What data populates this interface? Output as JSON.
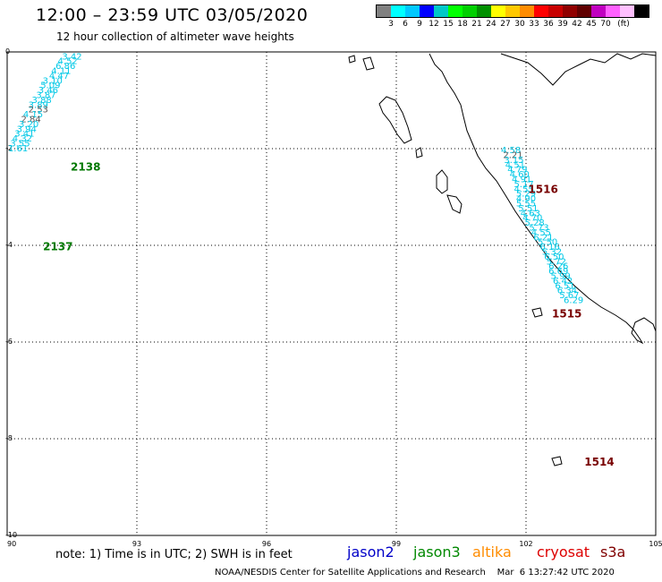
{
  "header": {
    "title": "12:00 – 23:59 UTC 03/05/2020",
    "subtitle": "12 hour collection of altimeter wave heights"
  },
  "legend": {
    "colors": [
      "#808080",
      "#00ffff",
      "#00c8ff",
      "#0000ff",
      "#00c8c8",
      "#00ff00",
      "#00d000",
      "#009000",
      "#ffff00",
      "#ffc800",
      "#ff8c00",
      "#ff0000",
      "#c80000",
      "#900000",
      "#600000",
      "#c000c0",
      "#ff60ff",
      "#ffc0ff",
      "#000000"
    ],
    "ticks": [
      "3",
      "6",
      "9",
      "12",
      "15",
      "18",
      "21",
      "24",
      "27",
      "30",
      "33",
      "36",
      "39",
      "42",
      "45",
      "70",
      "(ft)"
    ]
  },
  "map": {
    "lat_ticks": [
      "0",
      "-2",
      "-4",
      "-6",
      "-8",
      "-10"
    ],
    "lon_ticks": [
      "90",
      "93",
      "96",
      "99",
      "102",
      "105"
    ],
    "lon_range": [
      90,
      105
    ],
    "lat_range": [
      -10,
      0
    ],
    "track_colors": {
      "cyan": "#00c8e6",
      "gray": "#555555",
      "green": "#007800",
      "darkred": "#780000"
    },
    "track_labels": [
      {
        "text": "2138",
        "lon": 91.47,
        "lat": -2.38,
        "color": "green"
      },
      {
        "text": "2137",
        "lon": 90.83,
        "lat": -4.03,
        "color": "green"
      },
      {
        "text": "1516",
        "lon": 102.05,
        "lat": -2.84,
        "color": "darkred"
      },
      {
        "text": "1515",
        "lon": 102.6,
        "lat": -5.42,
        "color": "darkred"
      },
      {
        "text": "1514",
        "lon": 103.35,
        "lat": -8.48,
        "color": "darkred"
      }
    ],
    "observations": [
      {
        "v": "3.42",
        "lon": 91.5,
        "lat": -0.08,
        "c": "cyan"
      },
      {
        "v": "4.52",
        "lon": 91.4,
        "lat": -0.18,
        "c": "cyan"
      },
      {
        "v": "6.86",
        "lon": 91.35,
        "lat": -0.28,
        "c": "cyan"
      },
      {
        "v": "4.11",
        "lon": 91.25,
        "lat": -0.38,
        "c": "cyan"
      },
      {
        "v": "4.47",
        "lon": 91.2,
        "lat": -0.48,
        "c": "cyan"
      },
      {
        "v": "3.10",
        "lon": 91.05,
        "lat": -0.58,
        "c": "cyan"
      },
      {
        "v": "5.09",
        "lon": 91.0,
        "lat": -0.68,
        "c": "cyan"
      },
      {
        "v": "3.46",
        "lon": 90.95,
        "lat": -0.78,
        "c": "cyan"
      },
      {
        "v": "3.87",
        "lon": 90.9,
        "lat": -0.88,
        "c": "cyan"
      },
      {
        "v": "3.88",
        "lon": 90.8,
        "lat": -0.98,
        "c": "cyan"
      },
      {
        "v": "3.89",
        "lon": 90.72,
        "lat": -1.08,
        "c": "cyan"
      },
      {
        "v": "2.53",
        "lon": 90.72,
        "lat": -1.18,
        "c": "gray"
      },
      {
        "v": "4.15",
        "lon": 90.6,
        "lat": -1.28,
        "c": "cyan"
      },
      {
        "v": "2.84",
        "lon": 90.55,
        "lat": -1.38,
        "c": "gray"
      },
      {
        "v": "3.20",
        "lon": 90.5,
        "lat": -1.48,
        "c": "cyan"
      },
      {
        "v": "3.94",
        "lon": 90.45,
        "lat": -1.58,
        "c": "cyan"
      },
      {
        "v": "3.41",
        "lon": 90.4,
        "lat": -1.68,
        "c": "cyan"
      },
      {
        "v": "4.32",
        "lon": 90.35,
        "lat": -1.78,
        "c": "cyan"
      },
      {
        "v": "3.55",
        "lon": 90.3,
        "lat": -1.88,
        "c": "cyan"
      },
      {
        "v": "1.61",
        "lon": 90.25,
        "lat": -1.98,
        "c": "cyan"
      },
      {
        "v": "4.58",
        "lon": 101.65,
        "lat": -2.02,
        "c": "cyan"
      },
      {
        "v": "2.21",
        "lon": 101.7,
        "lat": -2.12,
        "c": "gray"
      },
      {
        "v": "3.15",
        "lon": 101.72,
        "lat": -2.22,
        "c": "cyan"
      },
      {
        "v": "4.51",
        "lon": 101.75,
        "lat": -2.32,
        "c": "cyan"
      },
      {
        "v": "4.79",
        "lon": 101.8,
        "lat": -2.42,
        "c": "cyan"
      },
      {
        "v": "4.60",
        "lon": 101.85,
        "lat": -2.52,
        "c": "cyan"
      },
      {
        "v": "4.91",
        "lon": 101.9,
        "lat": -2.62,
        "c": "cyan"
      },
      {
        "v": "5.17",
        "lon": 101.95,
        "lat": -2.72,
        "c": "cyan"
      },
      {
        "v": "4.55",
        "lon": 101.95,
        "lat": -2.82,
        "c": "cyan"
      },
      {
        "v": "5.29",
        "lon": 102.0,
        "lat": -2.92,
        "c": "cyan"
      },
      {
        "v": "4.90",
        "lon": 102.0,
        "lat": -3.02,
        "c": "cyan"
      },
      {
        "v": "5.55",
        "lon": 102.0,
        "lat": -3.12,
        "c": "cyan"
      },
      {
        "v": "5.51",
        "lon": 102.05,
        "lat": -3.22,
        "c": "cyan"
      },
      {
        "v": "4.63",
        "lon": 102.1,
        "lat": -3.32,
        "c": "cyan"
      },
      {
        "v": "4.70",
        "lon": 102.15,
        "lat": -3.42,
        "c": "cyan"
      },
      {
        "v": "5.28",
        "lon": 102.2,
        "lat": -3.52,
        "c": "cyan"
      },
      {
        "v": "5.73",
        "lon": 102.3,
        "lat": -3.62,
        "c": "cyan"
      },
      {
        "v": "4.55",
        "lon": 102.35,
        "lat": -3.72,
        "c": "cyan"
      },
      {
        "v": "6.21",
        "lon": 102.4,
        "lat": -3.82,
        "c": "cyan"
      },
      {
        "v": "5.50",
        "lon": 102.5,
        "lat": -3.92,
        "c": "cyan"
      },
      {
        "v": "6.16",
        "lon": 102.55,
        "lat": -4.02,
        "c": "cyan"
      },
      {
        "v": "5.32",
        "lon": 102.6,
        "lat": -4.12,
        "c": "cyan"
      },
      {
        "v": "6.50",
        "lon": 102.65,
        "lat": -4.22,
        "c": "cyan"
      },
      {
        "v": "5.72",
        "lon": 102.7,
        "lat": -4.32,
        "c": "cyan"
      },
      {
        "v": "6.26",
        "lon": 102.75,
        "lat": -4.42,
        "c": "cyan"
      },
      {
        "v": "6.69",
        "lon": 102.75,
        "lat": -4.52,
        "c": "cyan"
      },
      {
        "v": "5.99",
        "lon": 102.8,
        "lat": -4.62,
        "c": "cyan"
      },
      {
        "v": "6.42",
        "lon": 102.85,
        "lat": -4.72,
        "c": "cyan"
      },
      {
        "v": "6.51",
        "lon": 102.9,
        "lat": -4.82,
        "c": "cyan"
      },
      {
        "v": "6.34",
        "lon": 102.95,
        "lat": -4.92,
        "c": "cyan"
      },
      {
        "v": "5.67",
        "lon": 103.0,
        "lat": -5.02,
        "c": "cyan"
      },
      {
        "v": "6.29",
        "lon": 103.1,
        "lat": -5.12,
        "c": "cyan"
      }
    ]
  },
  "note": "note:  1) Time is in UTC;  2) SWH is in feet",
  "satellites": [
    {
      "name": "jason2",
      "color": "#0000c8"
    },
    {
      "name": "jason3",
      "color": "#008800"
    },
    {
      "name": "altika",
      "color": "#ff8c00"
    },
    {
      "name": "cryosat",
      "color": "#dd0000"
    },
    {
      "name": "s3a",
      "color": "#800000"
    }
  ],
  "footer": "NOAA/NESDIS Center for Satellite Applications and Research    Mar  6 13:27:42 UTC 2020"
}
